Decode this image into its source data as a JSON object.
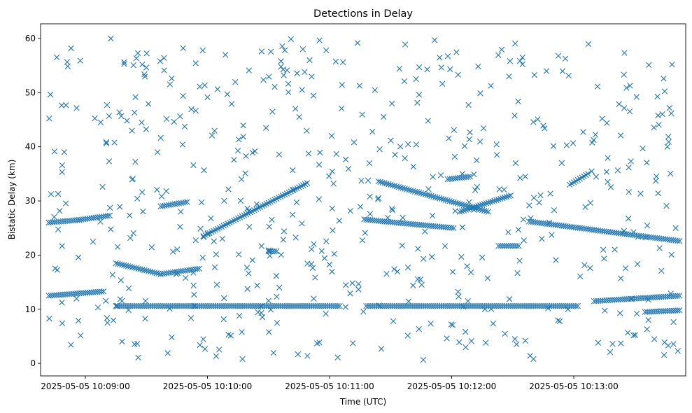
{
  "chart_data": {
    "type": "scatter",
    "title": "Detections in Delay",
    "xlabel": "Time (UTC)",
    "ylabel": "Bistatic Delay (km)",
    "marker": "x",
    "marker_color": "#1f77b4",
    "x_range": [
      "2025-05-05 10:08:38",
      "2025-05-05 10:13:55"
    ],
    "ylim": [
      -2.3,
      62.7
    ],
    "x_ticks": [
      "2025-05-05 10:09:00",
      "2025-05-05 10:10:00",
      "2025-05-05 10:11:00",
      "2025-05-05 10:12:00",
      "2025-05-05 10:13:00"
    ],
    "y_ticks": [
      0,
      10,
      20,
      30,
      40,
      50,
      60
    ],
    "grid": false,
    "legend": "none",
    "time_span": {
      "start": "2025-05-05 10:08:42",
      "end": "2025-05-05 10:13:52",
      "step_seconds": 1
    },
    "tracks": [
      {
        "x_start": "2025-05-05 10:08:42",
        "x_end": "2025-05-05 10:08:57",
        "y_start": 26.0,
        "y_end": 26.5
      },
      {
        "x_start": "2025-05-05 10:08:57",
        "x_end": "2025-05-05 10:09:12",
        "y_start": 26.5,
        "y_end": 27.3
      },
      {
        "x_start": "2025-05-05 10:08:42",
        "x_end": "2025-05-05 10:09:09",
        "y_start": 12.5,
        "y_end": 13.3
      },
      {
        "x_start": "2025-05-05 10:09:15",
        "x_end": "2025-05-05 10:11:05",
        "y_start": 10.6,
        "y_end": 10.6
      },
      {
        "x_start": "2025-05-05 10:11:18",
        "x_end": "2025-05-05 10:13:02",
        "y_start": 10.6,
        "y_end": 10.6
      },
      {
        "x_start": "2025-05-05 10:09:15",
        "x_end": "2025-05-05 10:09:37",
        "y_start": 18.5,
        "y_end": 16.5
      },
      {
        "x_start": "2025-05-05 10:09:37",
        "x_end": "2025-05-05 10:09:56",
        "y_start": 16.5,
        "y_end": 17.5
      },
      {
        "x_start": "2025-05-05 10:09:37",
        "x_end": "2025-05-05 10:09:50",
        "y_start": 29.0,
        "y_end": 29.8
      },
      {
        "x_start": "2025-05-05 10:09:58",
        "x_end": "2025-05-05 10:10:49",
        "y_start": 23.5,
        "y_end": 33.3
      },
      {
        "x_start": "2025-05-05 10:10:30",
        "x_end": "2025-05-05 10:10:34",
        "y_start": 20.7,
        "y_end": 20.7
      },
      {
        "x_start": "2025-05-05 10:11:17",
        "x_end": "2025-05-05 10:11:27",
        "y_start": 26.6,
        "y_end": 26.2
      },
      {
        "x_start": "2025-05-05 10:11:27",
        "x_end": "2025-05-05 10:12:01",
        "y_start": 26.2,
        "y_end": 25.0
      },
      {
        "x_start": "2025-05-05 10:11:24",
        "x_end": "2025-05-05 10:12:18",
        "y_start": 33.6,
        "y_end": 28.0
      },
      {
        "x_start": "2025-05-05 10:11:58",
        "x_end": "2025-05-05 10:12:09",
        "y_start": 34.0,
        "y_end": 34.5
      },
      {
        "x_start": "2025-05-05 10:12:04",
        "x_end": "2025-05-05 10:12:29",
        "y_start": 28.0,
        "y_end": 31.0
      },
      {
        "x_start": "2025-05-05 10:12:23",
        "x_end": "2025-05-05 10:12:33",
        "y_start": 21.7,
        "y_end": 21.7
      },
      {
        "x_start": "2025-05-05 10:12:38",
        "x_end": "2025-05-05 10:13:52",
        "y_start": 26.2,
        "y_end": 22.6
      },
      {
        "x_start": "2025-05-05 10:12:58",
        "x_end": "2025-05-05 10:13:07",
        "y_start": 33.0,
        "y_end": 35.0
      },
      {
        "x_start": "2025-05-05 10:13:10",
        "x_end": "2025-05-05 10:13:52",
        "y_start": 11.5,
        "y_end": 12.5
      },
      {
        "x_start": "2025-05-05 10:13:35",
        "x_end": "2025-05-05 10:13:52",
        "y_start": 9.5,
        "y_end": 9.8
      }
    ],
    "noise": {
      "description": "uniformly scattered clutter detections across the full delay range",
      "count": 560,
      "y_range": [
        0.5,
        60.0
      ],
      "seed": 20250505
    }
  }
}
